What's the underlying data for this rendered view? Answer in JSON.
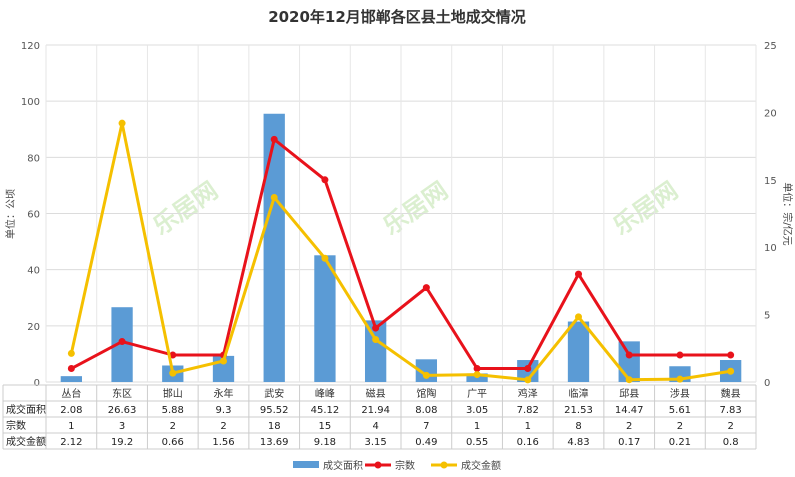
{
  "chart_data": {
    "type": "bar",
    "title": "2020年12月邯郸各区县土地成交情况",
    "left_axis_label": "单位：公顷",
    "right_axis_label": "单位：宗/亿元",
    "ylim_left": [
      0,
      120
    ],
    "ylim_right": [
      0,
      25
    ],
    "left_ticks": [
      0,
      20,
      40,
      60,
      80,
      100,
      120
    ],
    "right_ticks": [
      0,
      5,
      10,
      15,
      20,
      25
    ],
    "categories": [
      "丛台",
      "东区",
      "邯山",
      "永年",
      "武安",
      "峰峰",
      "磁县",
      "馆陶",
      "广平",
      "鸡泽",
      "临漳",
      "邱县",
      "涉县",
      "魏县"
    ],
    "series": [
      {
        "name": "成交面积",
        "type": "bar",
        "axis": "left",
        "color": "#5b9bd5",
        "values": [
          2.08,
          26.63,
          5.88,
          9.3,
          95.52,
          45.12,
          21.94,
          8.08,
          3.05,
          7.82,
          21.53,
          14.47,
          5.61,
          7.83
        ],
        "labels": [
          "2.08",
          "26.63",
          "5.88",
          "9.3",
          "95.52",
          "45.12",
          "21.94",
          "8.08",
          "3.05",
          "7.82",
          "21.53",
          "14.47",
          "5.61",
          "7.83"
        ]
      },
      {
        "name": "宗数",
        "type": "line",
        "axis": "right",
        "color": "#e8121b",
        "values": [
          1,
          3,
          2,
          2,
          18,
          15,
          4,
          7,
          1,
          1,
          8,
          2,
          2,
          2
        ],
        "labels": [
          "1",
          "3",
          "2",
          "2",
          "18",
          "15",
          "4",
          "7",
          "1",
          "1",
          "8",
          "2",
          "2",
          "2"
        ]
      },
      {
        "name": "成交金额",
        "type": "line",
        "axis": "right",
        "color": "#f5c000",
        "values": [
          2.12,
          19.2,
          0.66,
          1.56,
          13.69,
          9.18,
          3.15,
          0.49,
          0.55,
          0.16,
          4.83,
          0.17,
          0.21,
          0.8
        ],
        "labels": [
          "2.12",
          "19.2",
          "0.66",
          "1.56",
          "13.69",
          "9.18",
          "3.15",
          "0.49",
          "0.55",
          "0.16",
          "4.83",
          "0.17",
          "0.21",
          "0.8"
        ]
      }
    ],
    "grid": true,
    "legend_position": "bottom-center",
    "data_table": true,
    "watermark": "乐居网"
  }
}
